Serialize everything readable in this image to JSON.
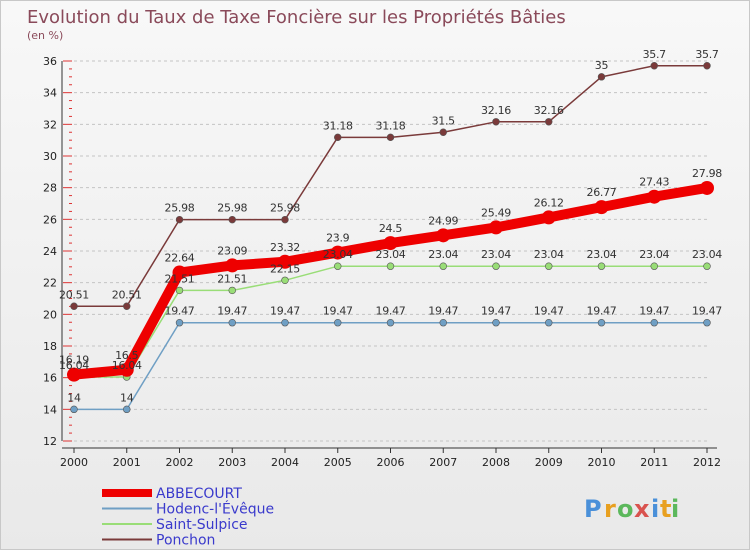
{
  "chart_data": {
    "type": "line",
    "title": "Evolution du Taux de Taxe Foncière sur les Propriétés Bâties",
    "subtitle": "(en %)",
    "xlabel": "",
    "ylabel": "",
    "x": [
      "2000",
      "2001",
      "2002",
      "2003",
      "2004",
      "2005",
      "2006",
      "2007",
      "2008",
      "2009",
      "2010",
      "2011",
      "2012"
    ],
    "ylim": [
      12,
      36
    ],
    "yticks": [
      12,
      14,
      16,
      18,
      20,
      22,
      24,
      26,
      28,
      30,
      32,
      34,
      36
    ],
    "grid": "horizontal-dashed",
    "legend_position": "bottom-left",
    "series": [
      {
        "name": "ABBECOURT",
        "color": "#ee0000",
        "values": [
          16.19,
          16.5,
          22.64,
          23.09,
          23.32,
          23.9,
          24.5,
          24.99,
          25.49,
          26.12,
          26.77,
          27.43,
          27.98
        ],
        "labels": [
          "16.19",
          "16.5",
          "22.64",
          "23.09",
          "23.32",
          "23.9",
          "24.5",
          "24.99",
          "25.49",
          "26.12",
          "26.77",
          "27.43",
          "27.98"
        ]
      },
      {
        "name": "Hodenc-l'Évêque",
        "color": "#6f9fc4",
        "values": [
          14,
          14,
          19.47,
          19.47,
          19.47,
          19.47,
          19.47,
          19.47,
          19.47,
          19.47,
          19.47,
          19.47,
          19.47
        ],
        "labels": [
          "14",
          "14",
          "19.47",
          "19.47",
          "19.47",
          "19.47",
          "19.47",
          "19.47",
          "19.47",
          "19.47",
          "19.47",
          "19.47",
          "19.47"
        ]
      },
      {
        "name": "Saint-Sulpice",
        "color": "#99dd77",
        "values": [
          16.04,
          16.04,
          21.51,
          21.51,
          22.15,
          23.04,
          23.04,
          23.04,
          23.04,
          23.04,
          23.04,
          23.04,
          23.04
        ],
        "labels": [
          "16.04",
          "16.04",
          "21.51",
          "21.51",
          "22.15",
          "23.04",
          "23.04",
          "23.04",
          "23.04",
          "23.04",
          "23.04",
          "23.04",
          "23.04"
        ]
      },
      {
        "name": "Ponchon",
        "color": "#7a3a3a",
        "values": [
          20.51,
          20.51,
          25.98,
          25.98,
          25.98,
          31.18,
          31.18,
          31.5,
          32.16,
          32.16,
          35,
          35.7,
          35.7
        ],
        "labels": [
          "20.51",
          "20.51",
          "25.98",
          "25.98",
          "25.98",
          "31.18",
          "31.18",
          "31.5",
          "32.16",
          "32.16",
          "35",
          "35.7",
          "35.7"
        ]
      }
    ]
  },
  "branding": {
    "logo_letters": [
      "P",
      "r",
      "o",
      "x",
      "i",
      "t",
      "i"
    ],
    "logo_colors": [
      "#4a90d9",
      "#e8a020",
      "#5cb85c",
      "#d9534f",
      "#4a90d9",
      "#e8a020",
      "#5cb85c"
    ]
  }
}
